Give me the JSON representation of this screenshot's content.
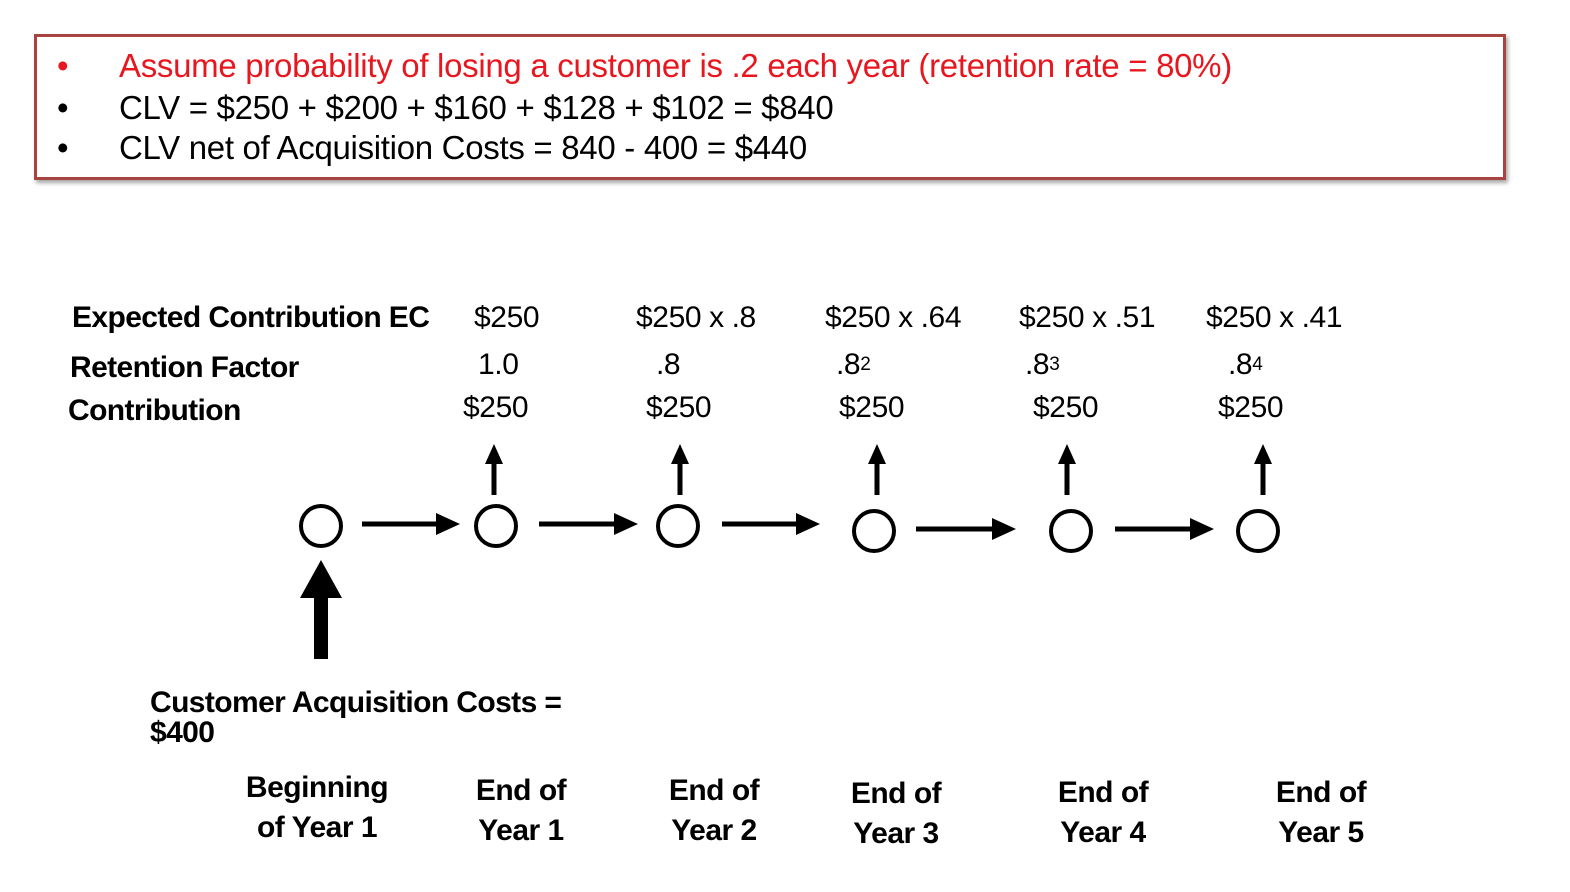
{
  "colors": {
    "accent_text": "#e8171f",
    "box_border": "#a8443f",
    "ink": "#000000"
  },
  "bullets": [
    {
      "marker": "•",
      "text": "Assume probability of losing a customer is .2 each year (retention rate = 80%)",
      "highlight": true
    },
    {
      "marker": "•",
      "text": "CLV = $250 + $200 + $160 + $128 + $102 = $840",
      "highlight": false
    },
    {
      "marker": "•",
      "text": "CLV  net of Acquisition Costs = 840 - 400 = $440",
      "highlight": false
    }
  ],
  "row_labels": {
    "expected": "Expected Contribution EC",
    "retention": "Retention Factor",
    "contribution": "Contribution"
  },
  "columns": [
    {
      "ec": "$250",
      "rf_base": "1.0",
      "rf_exp": "",
      "contribution": "$250",
      "bottom_line1": "End of",
      "bottom_line2": "Year 1"
    },
    {
      "ec": "$250 x .8",
      "rf_base": ".8",
      "rf_exp": "",
      "contribution": "$250",
      "bottom_line1": "End of",
      "bottom_line2": "Year 2"
    },
    {
      "ec": "$250 x .64",
      "rf_base": ".8",
      "rf_exp": "2",
      "contribution": "$250",
      "bottom_line1": "End of",
      "bottom_line2": "Year 3"
    },
    {
      "ec": "$250 x .51",
      "rf_base": ".8",
      "rf_exp": "3",
      "contribution": "$250",
      "bottom_line1": "End of",
      "bottom_line2": "Year 4"
    },
    {
      "ec": "$250 x .41",
      "rf_base": ".8",
      "rf_exp": "4",
      "contribution": "$250",
      "bottom_line1": "End of",
      "bottom_line2": "Year 5"
    }
  ],
  "start": {
    "bottom_line1": "Beginning",
    "bottom_line2": "of Year 1",
    "acq_line1": "Customer Acquisition Costs =",
    "acq_line2": "$400"
  }
}
